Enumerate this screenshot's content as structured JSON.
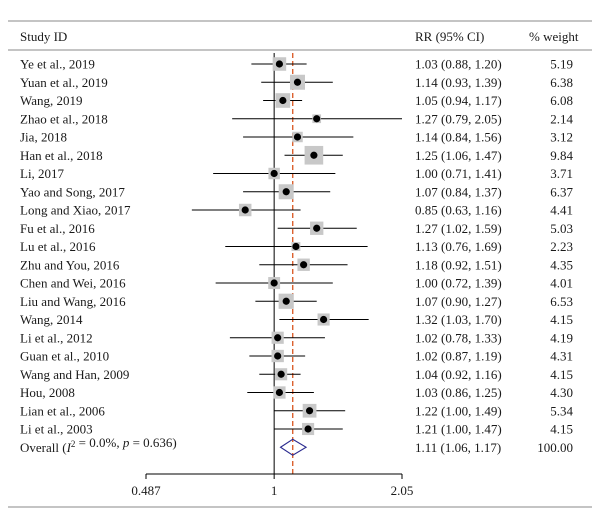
{
  "chart_data": {
    "type": "forest",
    "headers": {
      "study": "Study ID",
      "effect": "RR (95% CI)",
      "weight": "% weight"
    },
    "scale": "log",
    "xlim": [
      0.487,
      2.05
    ],
    "x_ticks": [
      {
        "value": 0.487,
        "label": "0.487"
      },
      {
        "value": 1,
        "label": "1"
      },
      {
        "value": 2.05,
        "label": "2.05"
      }
    ],
    "null_value": 1,
    "overall_line": 1.11,
    "studies": [
      {
        "name": "Ye et al., 2019",
        "rr": 1.03,
        "lo": 0.88,
        "hi": 1.2,
        "ci_text": "1.03 (0.88, 1.20)",
        "weight": 5.19,
        "weight_text": "5.19"
      },
      {
        "name": "Yuan et al., 2019",
        "rr": 1.14,
        "lo": 0.93,
        "hi": 1.39,
        "ci_text": "1.14 (0.93, 1.39)",
        "weight": 6.38,
        "weight_text": "6.38"
      },
      {
        "name": "Wang, 2019",
        "rr": 1.05,
        "lo": 0.94,
        "hi": 1.17,
        "ci_text": "1.05 (0.94, 1.17)",
        "weight": 6.08,
        "weight_text": "6.08"
      },
      {
        "name": "Zhao et al., 2018",
        "rr": 1.27,
        "lo": 0.79,
        "hi": 2.05,
        "ci_text": "1.27 (0.79, 2.05)",
        "weight": 2.14,
        "weight_text": "2.14"
      },
      {
        "name": "Jia, 2018",
        "rr": 1.14,
        "lo": 0.84,
        "hi": 1.56,
        "ci_text": "1.14 (0.84, 1.56)",
        "weight": 3.12,
        "weight_text": "3.12"
      },
      {
        "name": "Han et al., 2018",
        "rr": 1.25,
        "lo": 1.06,
        "hi": 1.47,
        "ci_text": "1.25 (1.06, 1.47)",
        "weight": 9.84,
        "weight_text": "9.84"
      },
      {
        "name": "Li, 2017",
        "rr": 1.0,
        "lo": 0.71,
        "hi": 1.41,
        "ci_text": "1.00 (0.71, 1.41)",
        "weight": 3.71,
        "weight_text": "3.71"
      },
      {
        "name": "Yao and Song, 2017",
        "rr": 1.07,
        "lo": 0.84,
        "hi": 1.37,
        "ci_text": "1.07 (0.84, 1.37)",
        "weight": 6.37,
        "weight_text": "6.37"
      },
      {
        "name": "Long and Xiao, 2017",
        "rr": 0.85,
        "lo": 0.63,
        "hi": 1.16,
        "ci_text": "0.85 (0.63, 1.16)",
        "weight": 4.41,
        "weight_text": "4.41"
      },
      {
        "name": "Fu et al., 2016",
        "rr": 1.27,
        "lo": 1.02,
        "hi": 1.59,
        "ci_text": "1.27 (1.02, 1.59)",
        "weight": 5.03,
        "weight_text": "5.03"
      },
      {
        "name": "Lu et al., 2016",
        "rr": 1.13,
        "lo": 0.76,
        "hi": 1.69,
        "ci_text": "1.13 (0.76, 1.69)",
        "weight": 2.23,
        "weight_text": "2.23"
      },
      {
        "name": "Zhu and You, 2016",
        "rr": 1.18,
        "lo": 0.92,
        "hi": 1.51,
        "ci_text": "1.18 (0.92, 1.51)",
        "weight": 4.35,
        "weight_text": "4.35"
      },
      {
        "name": "Chen and Wei, 2016",
        "rr": 1.0,
        "lo": 0.72,
        "hi": 1.39,
        "ci_text": "1.00 (0.72, 1.39)",
        "weight": 4.01,
        "weight_text": "4.01"
      },
      {
        "name": "Liu and Wang, 2016",
        "rr": 1.07,
        "lo": 0.9,
        "hi": 1.27,
        "ci_text": "1.07 (0.90, 1.27)",
        "weight": 6.53,
        "weight_text": "6.53"
      },
      {
        "name": "Wang, 2014",
        "rr": 1.32,
        "lo": 1.03,
        "hi": 1.7,
        "ci_text": "1.32 (1.03, 1.70)",
        "weight": 4.15,
        "weight_text": "4.15"
      },
      {
        "name": "Li et al., 2012",
        "rr": 1.02,
        "lo": 0.78,
        "hi": 1.33,
        "ci_text": "1.02 (0.78, 1.33)",
        "weight": 4.19,
        "weight_text": "4.19"
      },
      {
        "name": "Guan et al., 2010",
        "rr": 1.02,
        "lo": 0.87,
        "hi": 1.19,
        "ci_text": "1.02 (0.87, 1.19)",
        "weight": 4.31,
        "weight_text": "4.31"
      },
      {
        "name": "Wang and Han, 2009",
        "rr": 1.04,
        "lo": 0.92,
        "hi": 1.16,
        "ci_text": "1.04 (0.92, 1.16)",
        "weight": 4.15,
        "weight_text": "4.15"
      },
      {
        "name": "Hou, 2008",
        "rr": 1.03,
        "lo": 0.86,
        "hi": 1.25,
        "ci_text": "1.03 (0.86, 1.25)",
        "weight": 4.3,
        "weight_text": "4.30"
      },
      {
        "name": "Lian et al., 2006",
        "rr": 1.22,
        "lo": 1.0,
        "hi": 1.49,
        "ci_text": "1.22 (1.00, 1.49)",
        "weight": 5.34,
        "weight_text": "5.34"
      },
      {
        "name": "Li et al., 2003",
        "rr": 1.21,
        "lo": 1.0,
        "hi": 1.47,
        "ci_text": "1.21 (1.00, 1.47)",
        "weight": 4.15,
        "weight_text": "4.15"
      }
    ],
    "overall": {
      "name_prefix": "Overall (",
      "i2_symbol": "I",
      "i2_rest": " = 0.0%, ",
      "p_symbol": "p",
      "p_rest": " = 0.636)",
      "rr": 1.11,
      "lo": 1.06,
      "hi": 1.17,
      "ci_text": "1.11 (1.06, 1.17)",
      "weight_text": "100.00"
    },
    "colors": {
      "text": "#1a1a1a",
      "axis": "#000000",
      "ci_line": "#000000",
      "point": "#000000",
      "weight_box": "#c8c8c8",
      "overall_line": "#d9541e",
      "diamond": "#2b2b8f",
      "rule": "#8a8a8a"
    }
  }
}
